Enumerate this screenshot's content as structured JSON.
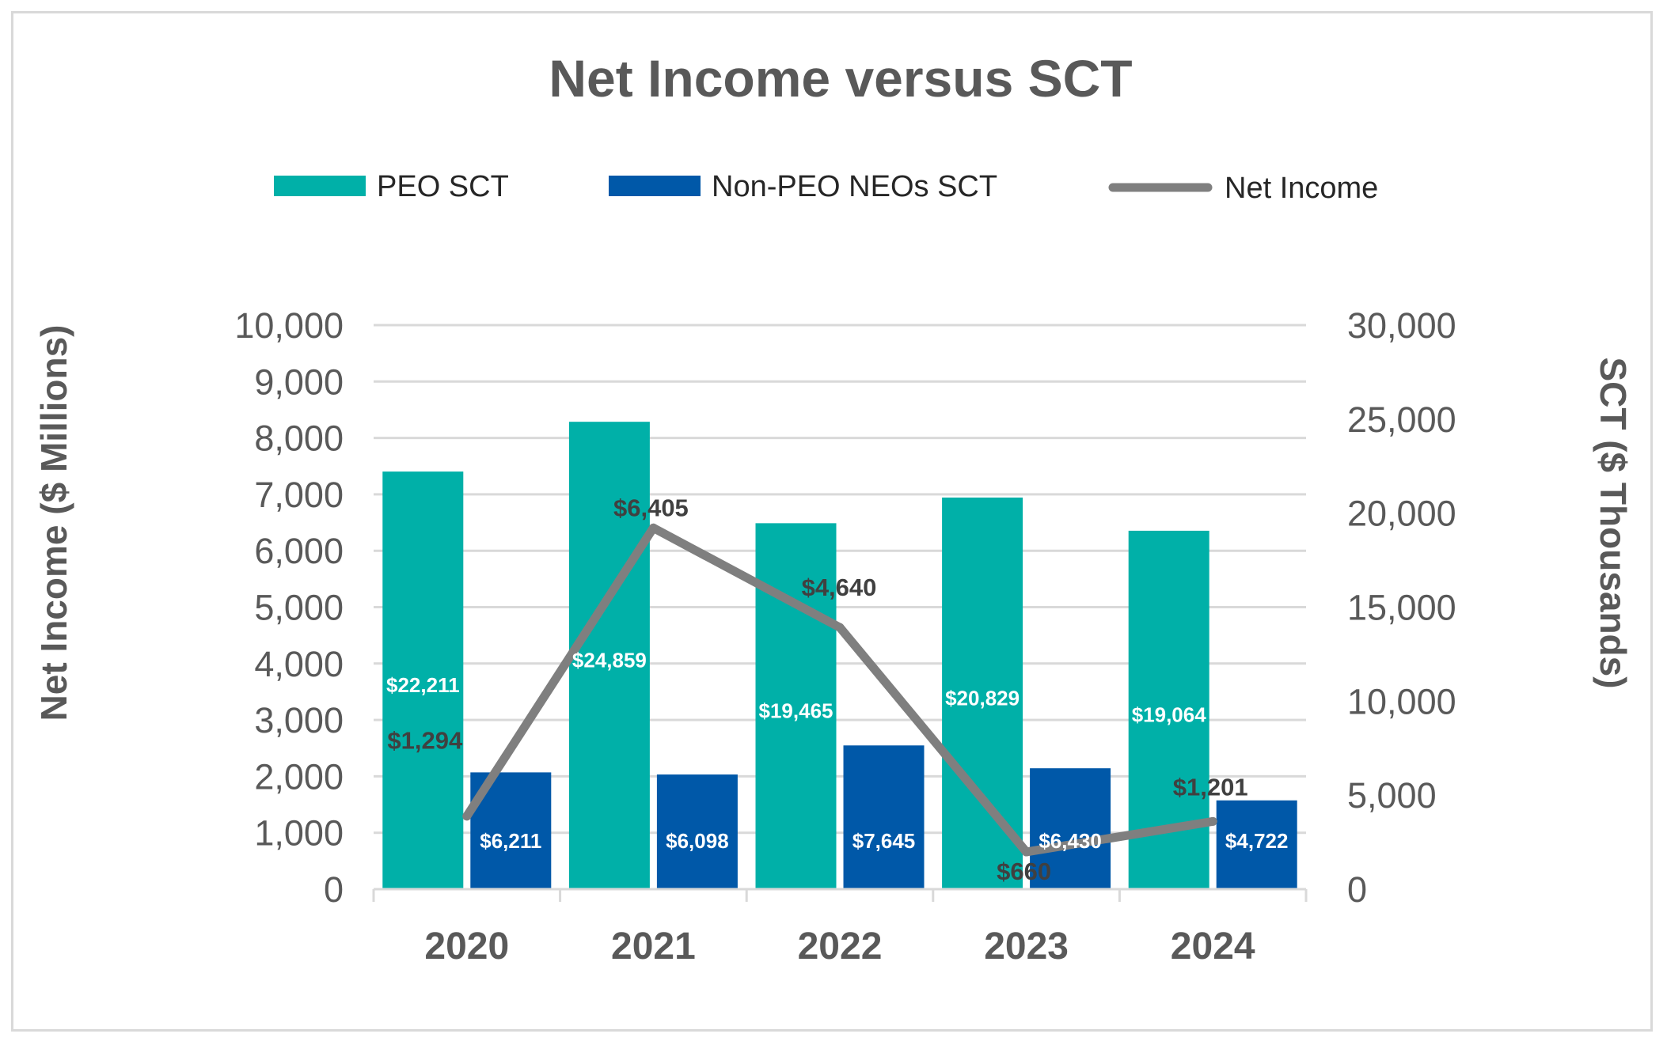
{
  "chart_data": {
    "type": "bar",
    "title": "Net Income versus SCT",
    "categories": [
      "2020",
      "2021",
      "2022",
      "2023",
      "2024"
    ],
    "series": [
      {
        "name": "PEO SCT",
        "kind": "bar",
        "axis": "right",
        "color": "#00b0a8",
        "values": [
          22211,
          24859,
          19465,
          20829,
          19064
        ],
        "labels": [
          "$22,211",
          "$24,859",
          "$19,465",
          "$20,829",
          "$19,064"
        ]
      },
      {
        "name": "Non-PEO NEOs SCT",
        "kind": "bar",
        "axis": "right",
        "color": "#0058a8",
        "values": [
          6211,
          6098,
          7645,
          6430,
          4722
        ],
        "labels": [
          "$6,211",
          "$6,098",
          "$7,645",
          "$6,430",
          "$4,722"
        ]
      },
      {
        "name": "Net Income",
        "kind": "line",
        "axis": "left",
        "color": "#7f7f7f",
        "values": [
          1294,
          6405,
          4640,
          660,
          1201
        ],
        "labels": [
          "$1,294",
          "$6,405",
          "$4,640",
          "$660",
          "$1,201"
        ]
      }
    ],
    "ylabel": "Net Income ($ Millions)",
    "ylim": [
      0,
      10000
    ],
    "yticks": [
      "0",
      "1,000",
      "2,000",
      "3,000",
      "4,000",
      "5,000",
      "6,000",
      "7,000",
      "8,000",
      "9,000",
      "10,000"
    ],
    "y2label": "SCT ($ Thousands)",
    "y2lim": [
      0,
      30000
    ],
    "y2ticks": [
      "0",
      "5,000",
      "10,000",
      "15,000",
      "20,000",
      "25,000",
      "30,000"
    ],
    "legend_position": "top",
    "grid": true
  }
}
